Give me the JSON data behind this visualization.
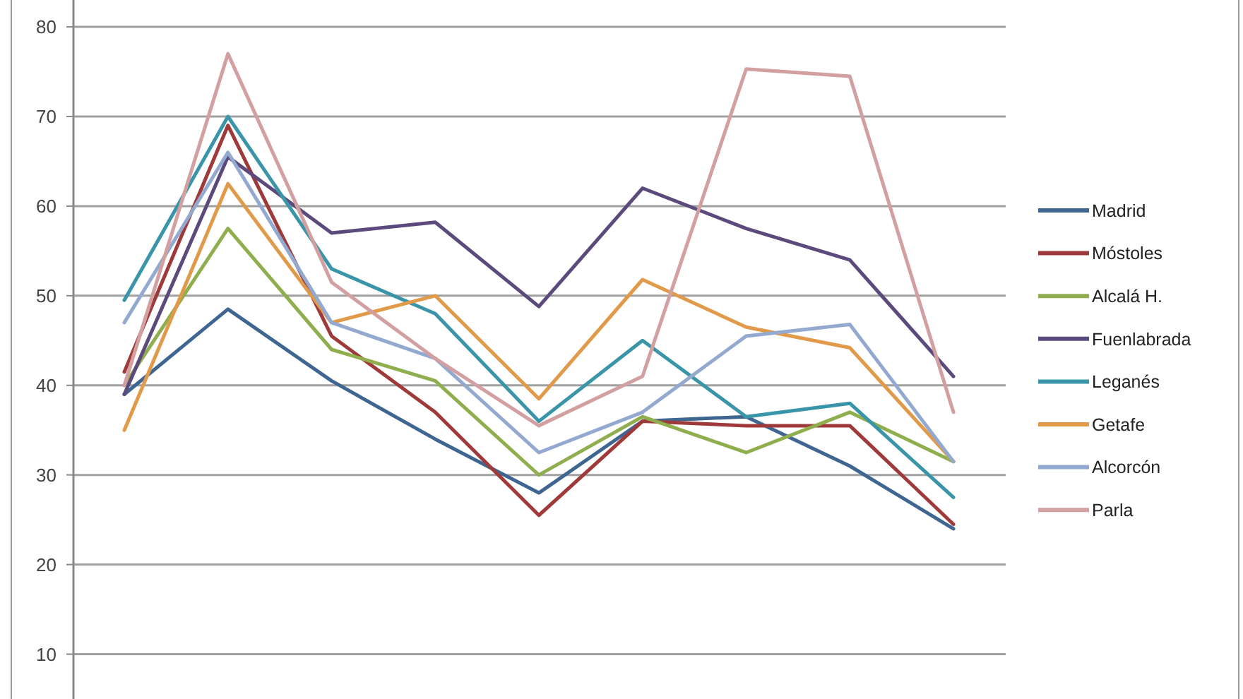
{
  "chart_data": {
    "type": "line",
    "categories": [
      null,
      null,
      null,
      null,
      null,
      null,
      null,
      null,
      null
    ],
    "ylim": [
      5,
      83
    ],
    "yticks": [
      10,
      20,
      30,
      40,
      50,
      60,
      70,
      80
    ],
    "grid": "y",
    "legend": "right",
    "marker": "none",
    "line_style": "solid",
    "series": [
      {
        "name": "Madrid",
        "color": "#3f6690",
        "values": [
          39,
          48.5,
          40.5,
          34,
          28,
          36,
          36.5,
          31,
          24
        ]
      },
      {
        "name": "Móstoles",
        "color": "#9e3b3a",
        "values": [
          41.5,
          69,
          45.5,
          37,
          25.5,
          36,
          35.5,
          35.5,
          24.5
        ]
      },
      {
        "name": "Alcalá H.",
        "color": "#8fae4e",
        "values": [
          40,
          57.5,
          44,
          40.5,
          30,
          36.5,
          32.5,
          37,
          31.5
        ]
      },
      {
        "name": "Fuenlabrada",
        "color": "#5d4a7d",
        "values": [
          39,
          65.5,
          57,
          58.2,
          48.8,
          62,
          57.5,
          54,
          41
        ]
      },
      {
        "name": "Leganés",
        "color": "#3a95a8",
        "values": [
          49.5,
          70,
          53,
          48,
          36,
          45,
          36.5,
          38,
          27.5
        ]
      },
      {
        "name": "Getafe",
        "color": "#e09a4a",
        "values": [
          35,
          62.5,
          47,
          50,
          38.5,
          51.8,
          46.5,
          44.2,
          31.5
        ]
      },
      {
        "name": "Alcorcón",
        "color": "#93a9cf",
        "values": [
          47,
          66,
          47,
          43,
          32.5,
          37,
          45.5,
          46.8,
          31.5
        ]
      },
      {
        "name": "Parla",
        "color": "#d2a0a0",
        "values": [
          40,
          77,
          51.5,
          43,
          35.5,
          41,
          75.3,
          74.5,
          37
        ]
      }
    ]
  }
}
